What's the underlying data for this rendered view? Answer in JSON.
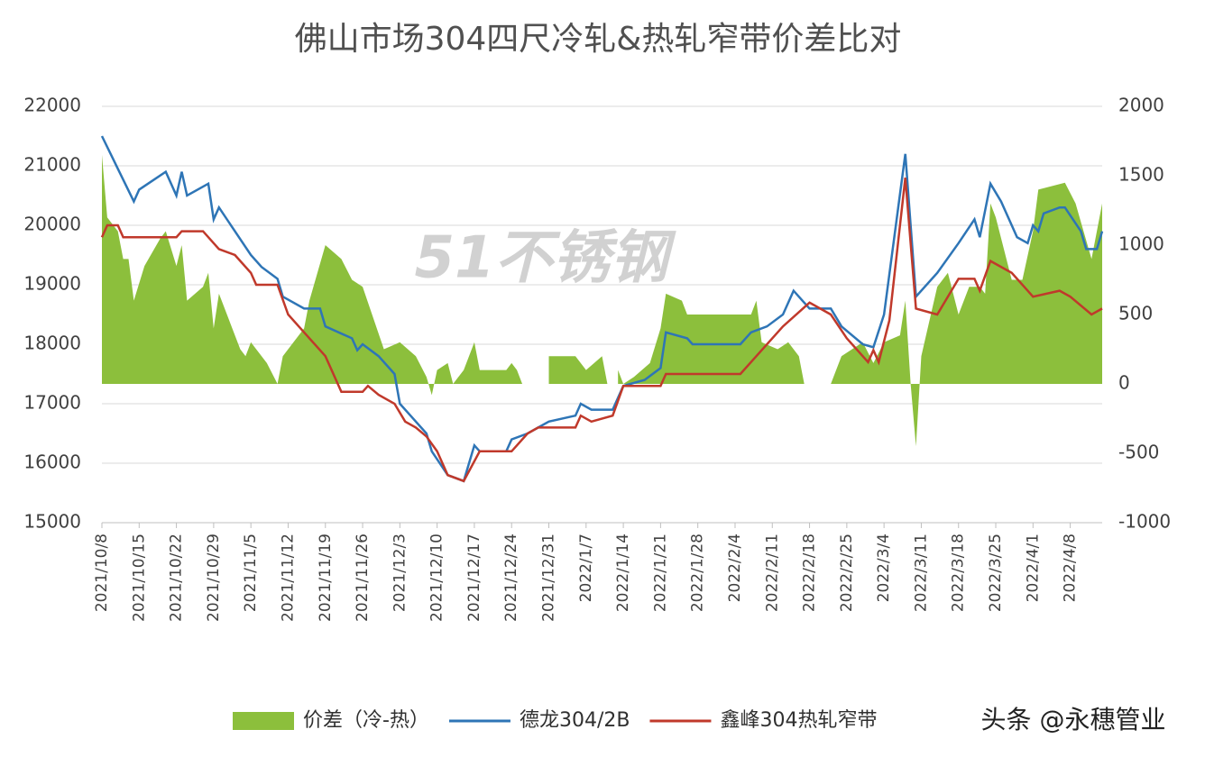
{
  "chart_data": {
    "type": "combo",
    "title": "佛山市场304四尺冷轧&热轧窄带价差比对",
    "xlim": [
      "2021/10/8",
      "2022/4/14"
    ],
    "xticks": [
      "2021/10/8",
      "2021/10/15",
      "2021/10/22",
      "2021/10/29",
      "2021/11/5",
      "2021/11/12",
      "2021/11/19",
      "2021/11/26",
      "2021/12/3",
      "2021/12/10",
      "2021/12/17",
      "2021/12/24",
      "2021/12/31",
      "2022/1/7",
      "2022/1/14",
      "2022/1/21",
      "2022/1/28",
      "2022/2/4",
      "2022/2/11",
      "2022/2/18",
      "2022/2/25",
      "2022/3/4",
      "2022/3/11",
      "2022/3/18",
      "2022/3/25",
      "2022/4/1",
      "2022/4/8"
    ],
    "ylim": [
      15000,
      22000
    ],
    "yticks": [
      15000,
      16000,
      17000,
      18000,
      19000,
      20000,
      21000,
      22000
    ],
    "y2lim": [
      -1000,
      2000
    ],
    "y2ticks": [
      -1000,
      -500,
      0,
      500,
      1000,
      1500,
      2000
    ],
    "grid": true,
    "legend": "bottom",
    "watermarks": [
      "51不锈钢",
      "头条 @永穗管业"
    ],
    "series": [
      {
        "name": "价差（冷-热）",
        "type": "area",
        "axis": "y2",
        "color": "#8cbf3c",
        "x": [
          "2021/10/8",
          "2021/10/9",
          "2021/10/11",
          "2021/10/12",
          "2021/10/13",
          "2021/10/14",
          "2021/10/16",
          "2021/10/19",
          "2021/10/20",
          "2021/10/22",
          "2021/10/23",
          "2021/10/24",
          "2021/10/27",
          "2021/10/28",
          "2021/10/29",
          "2021/10/30",
          "2021/11/3",
          "2021/11/4",
          "2021/11/5",
          "2021/11/8",
          "2021/11/10",
          "2021/11/11",
          "2021/11/15",
          "2021/11/16",
          "2021/11/19",
          "2021/11/22",
          "2021/11/24",
          "2021/11/26",
          "2021/11/30",
          "2021/12/3",
          "2021/12/6",
          "2021/12/8",
          "2021/12/9",
          "2021/12/10",
          "2021/12/12",
          "2021/12/13",
          "2021/12/15",
          "2021/12/17",
          "2021/12/18",
          "2021/12/23",
          "2021/12/24",
          "2021/12/25",
          "2021/12/26",
          "2021/12/28",
          "2021/12/31",
          "2022/1/5",
          "2022/1/7",
          "2022/1/10",
          "2022/1/11",
          "2022/1/12",
          "2022/1/13",
          "2022/1/14",
          "2022/1/16",
          "2022/1/19",
          "2022/1/21",
          "2022/1/22",
          "2022/1/25",
          "2022/1/26",
          "2022/2/7",
          "2022/2/8",
          "2022/2/9",
          "2022/2/12",
          "2022/2/14",
          "2022/2/16",
          "2022/2/17",
          "2022/2/19",
          "2022/2/22",
          "2022/2/24",
          "2022/2/26",
          "2022/2/28",
          "2022/3/2",
          "2022/3/4",
          "2022/3/7",
          "2022/3/8",
          "2022/3/9",
          "2022/3/10",
          "2022/3/11",
          "2022/3/14",
          "2022/3/16",
          "2022/3/18",
          "2022/3/20",
          "2022/3/22",
          "2022/3/23",
          "2022/3/24",
          "2022/3/25",
          "2022/3/28",
          "2022/3/30",
          "2022/4/1",
          "2022/4/2",
          "2022/4/7",
          "2022/4/9",
          "2022/4/12",
          "2022/4/14"
        ],
        "values": [
          1650,
          1200,
          1100,
          900,
          900,
          600,
          850,
          1050,
          1100,
          850,
          1000,
          600,
          700,
          800,
          400,
          650,
          250,
          200,
          300,
          150,
          0,
          200,
          400,
          600,
          1000,
          900,
          750,
          700,
          250,
          300,
          200,
          50,
          -80,
          100,
          150,
          0,
          100,
          300,
          100,
          100,
          150,
          100,
          0,
          null,
          200,
          200,
          100,
          200,
          0,
          null,
          100,
          0,
          50,
          150,
          400,
          650,
          600,
          500,
          500,
          600,
          300,
          250,
          300,
          200,
          0,
          null,
          0,
          200,
          250,
          300,
          150,
          300,
          350,
          600,
          0,
          -450,
          200,
          700,
          800,
          500,
          700,
          700,
          650,
          1300,
          1200,
          750,
          750,
          1100,
          1400,
          1450,
          1300,
          900,
          1300
        ]
      },
      {
        "name": "德龙304/2B",
        "type": "line",
        "axis": "y",
        "color": "#2e75b6",
        "x": [
          "2021/10/8",
          "2021/10/14",
          "2021/10/15",
          "2021/10/20",
          "2021/10/22",
          "2021/10/23",
          "2021/10/24",
          "2021/10/28",
          "2021/10/29",
          "2021/10/30",
          "2021/11/5",
          "2021/11/7",
          "2021/11/10",
          "2021/11/11",
          "2021/11/15",
          "2021/11/18",
          "2021/11/19",
          "2021/11/24",
          "2021/11/25",
          "2021/11/26",
          "2021/11/29",
          "2021/12/2",
          "2021/12/3",
          "2021/12/5",
          "2021/12/8",
          "2021/12/9",
          "2021/12/12",
          "2021/12/15",
          "2021/12/17",
          "2021/12/18",
          "2021/12/23",
          "2021/12/24",
          "2021/12/27",
          "2021/12/29",
          "2021/12/31",
          "2022/1/5",
          "2022/1/6",
          "2022/1/8",
          "2022/1/12",
          "2022/1/14",
          "2022/1/18",
          "2022/1/21",
          "2022/1/22",
          "2022/1/26",
          "2022/1/27",
          "2022/2/5",
          "2022/2/7",
          "2022/2/10",
          "2022/2/13",
          "2022/2/15",
          "2022/2/18",
          "2022/2/22",
          "2022/2/24",
          "2022/2/28",
          "2022/3/2",
          "2022/3/4",
          "2022/3/8",
          "2022/3/10",
          "2022/3/14",
          "2022/3/18",
          "2022/3/21",
          "2022/3/22",
          "2022/3/24",
          "2022/3/26",
          "2022/3/29",
          "2022/3/31",
          "2022/4/1",
          "2022/4/2",
          "2022/4/3",
          "2022/4/6",
          "2022/4/7",
          "2022/4/10",
          "2022/4/11",
          "2022/4/13",
          "2022/4/14"
        ],
        "values": [
          21500,
          20400,
          20600,
          20900,
          20500,
          20900,
          20500,
          20700,
          20100,
          20300,
          19500,
          19300,
          19100,
          18800,
          18600,
          18600,
          18300,
          18100,
          17900,
          18000,
          17800,
          17500,
          17000,
          16800,
          16500,
          16200,
          15800,
          15700,
          16300,
          16200,
          16200,
          16400,
          16500,
          16600,
          16700,
          16800,
          17000,
          16900,
          16900,
          17300,
          17400,
          17600,
          18200,
          18100,
          18000,
          18000,
          18200,
          18300,
          18500,
          18900,
          18600,
          18600,
          18300,
          18000,
          17950,
          18500,
          21200,
          18800,
          19200,
          19700,
          20100,
          19800,
          20700,
          20400,
          19800,
          19700,
          20000,
          19900,
          20200,
          20300,
          20300,
          19900,
          19600,
          19600,
          19900
        ]
      },
      {
        "name": "鑫峰304热轧窄带",
        "type": "line",
        "axis": "y",
        "color": "#c0392b",
        "x": [
          "2021/10/8",
          "2021/10/9",
          "2021/10/11",
          "2021/10/12",
          "2021/10/22",
          "2021/10/23",
          "2021/10/27",
          "2021/10/30",
          "2021/11/2",
          "2021/11/5",
          "2021/11/6",
          "2021/11/10",
          "2021/11/12",
          "2021/11/15",
          "2021/11/18",
          "2021/11/19",
          "2021/11/22",
          "2021/11/26",
          "2021/11/27",
          "2021/11/29",
          "2021/12/2",
          "2021/12/4",
          "2021/12/6",
          "2021/12/8",
          "2021/12/10",
          "2021/12/12",
          "2021/12/15",
          "2021/12/18",
          "2021/12/24",
          "2021/12/27",
          "2021/12/29",
          "2022/1/5",
          "2022/1/6",
          "2022/1/8",
          "2022/1/12",
          "2022/1/14",
          "2022/1/21",
          "2022/1/22",
          "2022/2/5",
          "2022/2/8",
          "2022/2/13",
          "2022/2/18",
          "2022/2/22",
          "2022/2/25",
          "2022/3/1",
          "2022/3/2",
          "2022/3/3",
          "2022/3/5",
          "2022/3/8",
          "2022/3/10",
          "2022/3/14",
          "2022/3/18",
          "2022/3/21",
          "2022/3/22",
          "2022/3/24",
          "2022/3/28",
          "2022/3/31",
          "2022/4/1",
          "2022/4/6",
          "2022/4/8",
          "2022/4/12",
          "2022/4/14"
        ],
        "values": [
          19800,
          20000,
          20000,
          19800,
          19800,
          19900,
          19900,
          19600,
          19500,
          19200,
          19000,
          19000,
          18500,
          18200,
          17900,
          17800,
          17200,
          17200,
          17300,
          17150,
          17000,
          16700,
          16600,
          16450,
          16200,
          15800,
          15700,
          16200,
          16200,
          16500,
          16600,
          16600,
          16800,
          16700,
          16800,
          17300,
          17300,
          17500,
          17500,
          17800,
          18300,
          18700,
          18500,
          18100,
          17700,
          17900,
          17700,
          18400,
          20800,
          18600,
          18500,
          19100,
          19100,
          18900,
          19400,
          19200,
          18900,
          18800,
          18900,
          18800,
          18500,
          18600
        ]
      }
    ]
  }
}
